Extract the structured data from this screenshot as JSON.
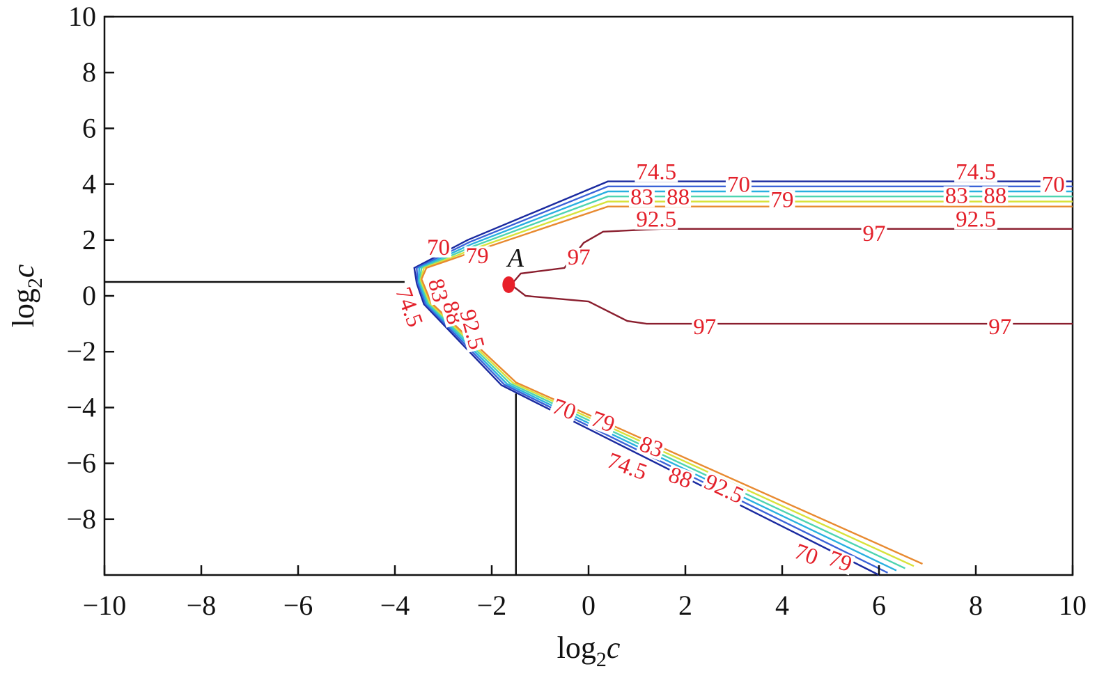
{
  "chart_data": {
    "type": "contour",
    "title": "",
    "xlabel": {
      "base": "log",
      "sub": "2",
      "var": "c"
    },
    "ylabel": {
      "base": "log",
      "sub": "2",
      "var": "c"
    },
    "xlim": [
      -10,
      10
    ],
    "ylim": [
      -10,
      10
    ],
    "x_ticks": [
      -10,
      -8,
      -6,
      -4,
      -2,
      0,
      2,
      4,
      6,
      8,
      10
    ],
    "y_ticks": [
      -8,
      -6,
      -4,
      -2,
      0,
      2,
      4,
      6,
      8,
      10
    ],
    "x_tick_labels": [
      "−10",
      "−8",
      "−6",
      "−4",
      "−2",
      "0",
      "2",
      "4",
      "6",
      "8",
      "10"
    ],
    "y_tick_labels": [
      "−8",
      "−6",
      "−4",
      "−2",
      "0",
      "2",
      "4",
      "6",
      "8",
      "10"
    ],
    "grid": false,
    "contour_levels": [
      {
        "level": 70,
        "color": "#1a2aa0"
      },
      {
        "level": 74.5,
        "color": "#3a62d8"
      },
      {
        "level": 79,
        "color": "#29b0e0"
      },
      {
        "level": 83,
        "color": "#4ed4b0"
      },
      {
        "level": 88,
        "color": "#d8e23a"
      },
      {
        "level": 92.5,
        "color": "#e88a30"
      },
      {
        "level": 97,
        "color": "#8a1e2e"
      }
    ],
    "contour_paths": {
      "upper_vertex_x": -3.6,
      "upper_bend": [
        -2.5,
        2.0
      ],
      "upper_top": [
        0.4,
        4.1
      ],
      "lower_vertex": [
        -3.4,
        -0.3
      ],
      "lower_knee": [
        -1.8,
        -3.2
      ],
      "lower_end": [
        6.0,
        -10.0
      ],
      "band_width_96": 0.75
    },
    "contour_97": {
      "upper_path": [
        [
          -1.6,
          0.4
        ],
        [
          -1.4,
          0.8
        ],
        [
          -0.5,
          1.0
        ],
        [
          -0.1,
          1.9
        ],
        [
          0.3,
          2.3
        ],
        [
          1.5,
          2.4
        ],
        [
          10,
          2.4
        ]
      ],
      "lower_path": [
        [
          -1.6,
          0.4
        ],
        [
          -1.3,
          0.0
        ],
        [
          0.0,
          -0.2
        ],
        [
          0.8,
          -0.9
        ],
        [
          1.2,
          -1.0
        ],
        [
          10,
          -1.0
        ]
      ]
    },
    "contour_labels": [
      {
        "text": "74.5",
        "x": 1.4,
        "y": 4.45
      },
      {
        "text": "70",
        "x": 3.1,
        "y": 4.0
      },
      {
        "text": "74.5",
        "x": 8.0,
        "y": 4.45
      },
      {
        "text": "70",
        "x": 9.6,
        "y": 4.0
      },
      {
        "text": "83",
        "x": 1.1,
        "y": 3.55
      },
      {
        "text": "88",
        "x": 1.85,
        "y": 3.55
      },
      {
        "text": "79",
        "x": 4.0,
        "y": 3.45
      },
      {
        "text": "83",
        "x": 7.6,
        "y": 3.6
      },
      {
        "text": "88",
        "x": 8.4,
        "y": 3.6
      },
      {
        "text": "92.5",
        "x": 1.4,
        "y": 2.75
      },
      {
        "text": "92.5",
        "x": 8.0,
        "y": 2.75
      },
      {
        "text": "97",
        "x": 5.9,
        "y": 2.25
      },
      {
        "text": "97",
        "x": -0.2,
        "y": 1.4
      },
      {
        "text": "97",
        "x": 2.4,
        "y": -1.1
      },
      {
        "text": "97",
        "x": 8.5,
        "y": -1.1
      },
      {
        "text": "70",
        "x": -3.1,
        "y": 1.75
      },
      {
        "text": "79",
        "x": -2.3,
        "y": 1.45
      },
      {
        "text": "74.5",
        "x": -3.7,
        "y": -0.4,
        "rotate": 70
      },
      {
        "text": "83",
        "x": -3.1,
        "y": 0.2,
        "rotate": 75
      },
      {
        "text": "88",
        "x": -2.8,
        "y": -0.6,
        "rotate": 75
      },
      {
        "text": "92.5",
        "x": -2.4,
        "y": -1.2,
        "rotate": 75
      },
      {
        "text": "70",
        "x": -0.5,
        "y": -4.05,
        "rotate": 20
      },
      {
        "text": "79",
        "x": 0.3,
        "y": -4.5,
        "rotate": 20
      },
      {
        "text": "83",
        "x": 1.3,
        "y": -5.4,
        "rotate": 20
      },
      {
        "text": "74.5",
        "x": 0.8,
        "y": -6.1,
        "rotate": 20
      },
      {
        "text": "88",
        "x": 1.9,
        "y": -6.5,
        "rotate": 20
      },
      {
        "text": "92.5",
        "x": 2.8,
        "y": -6.9,
        "rotate": 25
      },
      {
        "text": "70",
        "x": 4.5,
        "y": -9.25,
        "rotate": 20
      },
      {
        "text": "79",
        "x": 5.2,
        "y": -9.5,
        "rotate": 20
      }
    ],
    "point": {
      "label": "A",
      "x": -1.65,
      "y": 0.4,
      "color": "#e8202a"
    },
    "reference_lines": [
      {
        "orientation": "horizontal",
        "y": 0.5,
        "x_from": -10,
        "x_to": -3.8
      },
      {
        "orientation": "vertical",
        "x": -1.5,
        "y_from": -10,
        "y_to": -3.5
      }
    ]
  }
}
